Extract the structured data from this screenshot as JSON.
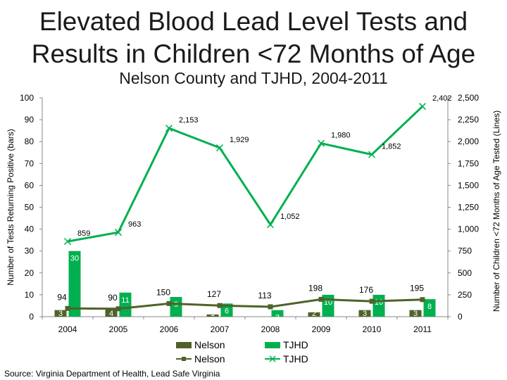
{
  "title_line1": "Elevated Blood Lead Level Tests and",
  "title_line2": "Results in Children <72 Months of Age",
  "subtitle": "Nelson County and TJHD, 2004-2011",
  "source": "Source: Virginia Department of Health, Lead Safe Virginia",
  "chart_data": {
    "type": "bar",
    "categories": [
      "2004",
      "2005",
      "2006",
      "2007",
      "2008",
      "2009",
      "2010",
      "2011"
    ],
    "ylabel": "Number of Tests Returning Positive (bars)",
    "y2label": "Number of Children <72 Months of Age Tested (Lines)",
    "ylim": [
      0,
      100
    ],
    "yticks": [
      0,
      10,
      20,
      30,
      40,
      50,
      60,
      70,
      80,
      90,
      100
    ],
    "y2lim": [
      0,
      2500
    ],
    "y2ticks": [
      "0",
      "250",
      "500",
      "750",
      "1,000",
      "1,250",
      "1,500",
      "1,750",
      "2,000",
      "2,250",
      "2,500"
    ],
    "legend_position": "bottom",
    "grid": false,
    "series": [
      {
        "name": "Nelson",
        "kind": "bar",
        "axis": "left",
        "color": "#4f6228",
        "values": [
          3,
          4,
          null,
          1,
          null,
          2,
          3,
          3
        ],
        "labels": [
          "3",
          "4",
          "",
          "1",
          "",
          "2",
          "3",
          "3"
        ]
      },
      {
        "name": "TJHD",
        "kind": "bar",
        "axis": "left",
        "color": "#00b050",
        "values": [
          30,
          11,
          9,
          6,
          3,
          10,
          10,
          8
        ],
        "labels": [
          "30",
          "11",
          "9",
          "6",
          "3",
          "10",
          "10",
          "8"
        ]
      },
      {
        "name": "Nelson",
        "kind": "line",
        "axis": "right",
        "color": "#4f6228",
        "values": [
          94,
          90,
          150,
          127,
          113,
          198,
          176,
          195
        ],
        "labels": [
          "94",
          "90",
          "150",
          "127",
          "113",
          "198",
          "176",
          "195"
        ]
      },
      {
        "name": "TJHD",
        "kind": "line",
        "axis": "right",
        "color": "#00b050",
        "values": [
          859,
          963,
          2153,
          1929,
          1052,
          1980,
          1852,
          2402
        ],
        "labels": [
          "859",
          "963",
          "2,153",
          "1,929",
          "1,052",
          "1,980",
          "1,852",
          "2,402"
        ]
      }
    ]
  }
}
